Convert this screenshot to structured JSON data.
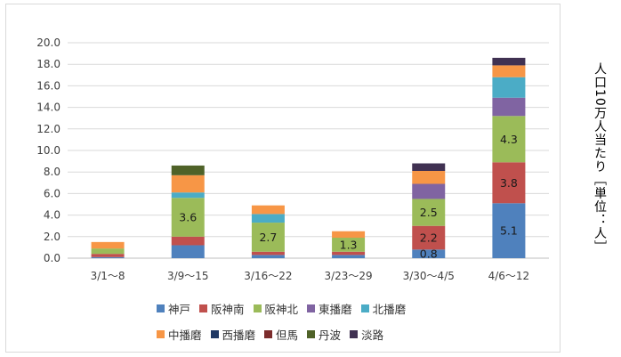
{
  "chart_data": {
    "type": "bar",
    "stacked": true,
    "categories": [
      "3/1〜8",
      "3/9〜15",
      "3/16〜22",
      "3/23〜29",
      "3/30〜4/5",
      "4/6〜12"
    ],
    "ylabel": "人口10万人当たり［単位：人］",
    "ylim": [
      0,
      20
    ],
    "yticks": [
      "0.0",
      "2.0",
      "4.0",
      "6.0",
      "8.0",
      "10.0",
      "12.0",
      "14.0",
      "16.0",
      "18.0",
      "20.0"
    ],
    "grid": true,
    "legend_position": "bottom",
    "series": [
      {
        "name": "神戸",
        "color": "#4f81bd",
        "values": [
          0.1,
          1.2,
          0.3,
          0.3,
          0.8,
          5.1
        ]
      },
      {
        "name": "阪神南",
        "color": "#c0504d",
        "values": [
          0.3,
          0.8,
          0.3,
          0.3,
          2.2,
          3.8
        ]
      },
      {
        "name": "阪神北",
        "color": "#9bbb59",
        "values": [
          0.5,
          3.6,
          2.7,
          1.3,
          2.5,
          4.3
        ]
      },
      {
        "name": "東播磨",
        "color": "#8064a2",
        "values": [
          0.0,
          0.0,
          0.0,
          0.0,
          1.4,
          1.7
        ]
      },
      {
        "name": "北播磨",
        "color": "#4bacc6",
        "values": [
          0.0,
          0.5,
          0.8,
          0.0,
          0.0,
          1.9
        ]
      },
      {
        "name": "中播磨",
        "color": "#f79646",
        "values": [
          0.6,
          1.6,
          0.8,
          0.6,
          1.2,
          1.1
        ]
      },
      {
        "name": "西播磨",
        "color": "#1f3864",
        "values": [
          0,
          0,
          0,
          0,
          0,
          0
        ]
      },
      {
        "name": "但馬",
        "color": "#7b2c2c",
        "values": [
          0,
          0,
          0,
          0,
          0,
          0
        ]
      },
      {
        "name": "丹波",
        "color": "#4f6228",
        "values": [
          0.0,
          0.9,
          0.0,
          0.0,
          0.0,
          0.0
        ]
      },
      {
        "name": "淡路",
        "color": "#403152",
        "values": [
          0.0,
          0.0,
          0.0,
          0.0,
          0.7,
          0.7
        ]
      }
    ],
    "data_labels": [
      {
        "series": "阪神北",
        "category": "3/9〜15",
        "text": "3.6"
      },
      {
        "series": "阪神北",
        "category": "3/16〜22",
        "text": "2.7"
      },
      {
        "series": "阪神北",
        "category": "3/23〜29",
        "text": "1.3"
      },
      {
        "series": "神戸",
        "category": "3/30〜4/5",
        "text": "0.8"
      },
      {
        "series": "阪神南",
        "category": "3/30〜4/5",
        "text": "2.2"
      },
      {
        "series": "阪神北",
        "category": "3/30〜4/5",
        "text": "2.5"
      },
      {
        "series": "神戸",
        "category": "4/6〜12",
        "text": "5.1"
      },
      {
        "series": "阪神南",
        "category": "4/6〜12",
        "text": "3.8"
      },
      {
        "series": "阪神北",
        "category": "4/6〜12",
        "text": "4.3"
      }
    ]
  },
  "legend": {
    "row1": [
      "神戸",
      "阪神南",
      "阪神北",
      "東播磨",
      "北播磨"
    ],
    "row2": [
      "中播磨",
      "西播磨",
      "但馬",
      "丹波",
      "淡路"
    ]
  }
}
